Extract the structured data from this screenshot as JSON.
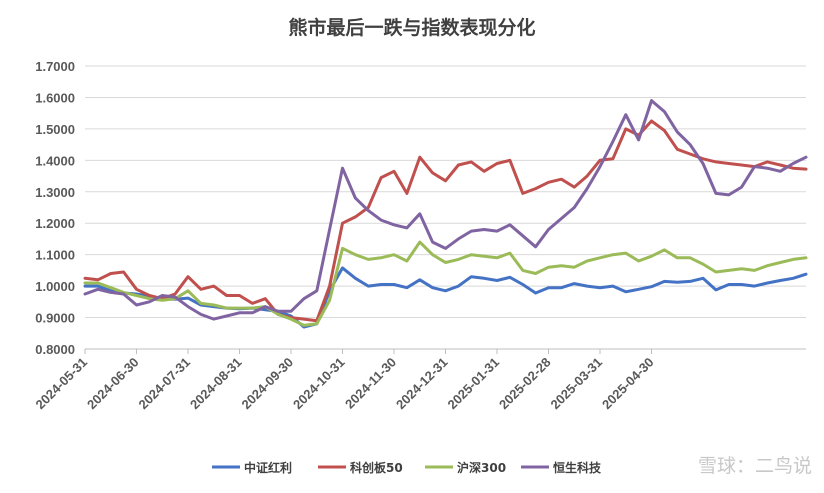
{
  "watermark": "雪球：二鸟说",
  "chart_data": {
    "type": "line",
    "title": "熊市最后一跌与指数表现分化",
    "xlabel": "",
    "ylabel": "",
    "ylim": [
      0.8,
      1.7
    ],
    "yticks": [
      "0.8000",
      "0.9000",
      "1.0000",
      "1.1000",
      "1.2000",
      "1.3000",
      "1.4000",
      "1.5000",
      "1.6000",
      "1.7000"
    ],
    "grid": true,
    "legend_position": "bottom",
    "x_tick_labels": [
      "2024-05-31",
      "2024-06-30",
      "2024-07-31",
      "2024-08-31",
      "2024-09-30",
      "2024-10-31",
      "2024-11-30",
      "2024-12-31",
      "2025-01-31",
      "2025-02-28",
      "2025-03-31",
      "2025-04-30"
    ],
    "x_tick_index": [
      0,
      4,
      8,
      12,
      16,
      20,
      24,
      28,
      32,
      36,
      40,
      44
    ],
    "series": [
      {
        "name": "中证红利",
        "color": "#4472c4",
        "values": [
          1.0,
          1.0,
          0.985,
          0.978,
          0.975,
          0.968,
          0.96,
          0.958,
          0.962,
          0.94,
          0.935,
          0.93,
          0.928,
          0.93,
          0.925,
          0.92,
          0.905,
          0.87,
          0.88,
          0.985,
          1.058,
          1.025,
          1.0,
          1.005,
          1.005,
          0.995,
          1.02,
          0.995,
          0.985,
          1.0,
          1.03,
          1.025,
          1.018,
          1.028,
          1.005,
          0.978,
          0.995,
          0.995,
          1.008,
          1.0,
          0.995,
          1.0,
          0.982,
          0.99,
          0.998,
          1.015,
          1.012,
          1.015,
          1.025,
          0.988,
          1.005,
          1.005,
          1.0,
          1.01,
          1.018,
          1.025,
          1.038
        ]
      },
      {
        "name": "科创板50",
        "color": "#c0504d",
        "values": [
          1.025,
          1.02,
          1.04,
          1.045,
          0.99,
          0.97,
          0.96,
          0.975,
          1.03,
          0.99,
          1.0,
          0.97,
          0.97,
          0.945,
          0.96,
          0.91,
          0.9,
          0.895,
          0.89,
          1.0,
          1.2,
          1.22,
          1.25,
          1.345,
          1.365,
          1.295,
          1.41,
          1.36,
          1.335,
          1.385,
          1.395,
          1.365,
          1.39,
          1.4,
          1.295,
          1.31,
          1.33,
          1.34,
          1.315,
          1.35,
          1.4,
          1.405,
          1.5,
          1.48,
          1.525,
          1.495,
          1.435,
          1.42,
          1.405,
          1.395,
          1.39,
          1.385,
          1.38,
          1.395,
          1.385,
          1.375,
          1.372
        ]
      },
      {
        "name": "沪深300",
        "color": "#9bbb59",
        "values": [
          1.01,
          1.01,
          0.995,
          0.98,
          0.97,
          0.96,
          0.955,
          0.96,
          0.985,
          0.945,
          0.94,
          0.93,
          0.93,
          0.93,
          0.935,
          0.91,
          0.895,
          0.875,
          0.88,
          0.955,
          1.12,
          1.1,
          1.085,
          1.09,
          1.1,
          1.08,
          1.14,
          1.1,
          1.075,
          1.085,
          1.1,
          1.095,
          1.09,
          1.105,
          1.05,
          1.04,
          1.06,
          1.065,
          1.06,
          1.08,
          1.09,
          1.1,
          1.105,
          1.08,
          1.095,
          1.115,
          1.09,
          1.09,
          1.07,
          1.045,
          1.05,
          1.055,
          1.05,
          1.065,
          1.075,
          1.085,
          1.09
        ]
      },
      {
        "name": "恒生科技",
        "color": "#8064a2",
        "values": [
          0.975,
          0.99,
          0.98,
          0.975,
          0.94,
          0.95,
          0.97,
          0.965,
          0.935,
          0.91,
          0.895,
          0.905,
          0.915,
          0.915,
          0.935,
          0.92,
          0.92,
          0.96,
          0.985,
          1.18,
          1.375,
          1.28,
          1.24,
          1.21,
          1.195,
          1.185,
          1.23,
          1.14,
          1.12,
          1.15,
          1.175,
          1.18,
          1.175,
          1.195,
          1.16,
          1.125,
          1.18,
          1.215,
          1.25,
          1.31,
          1.38,
          1.46,
          1.545,
          1.465,
          1.59,
          1.555,
          1.49,
          1.45,
          1.39,
          1.295,
          1.29,
          1.315,
          1.38,
          1.375,
          1.365,
          1.39,
          1.41
        ]
      }
    ]
  }
}
